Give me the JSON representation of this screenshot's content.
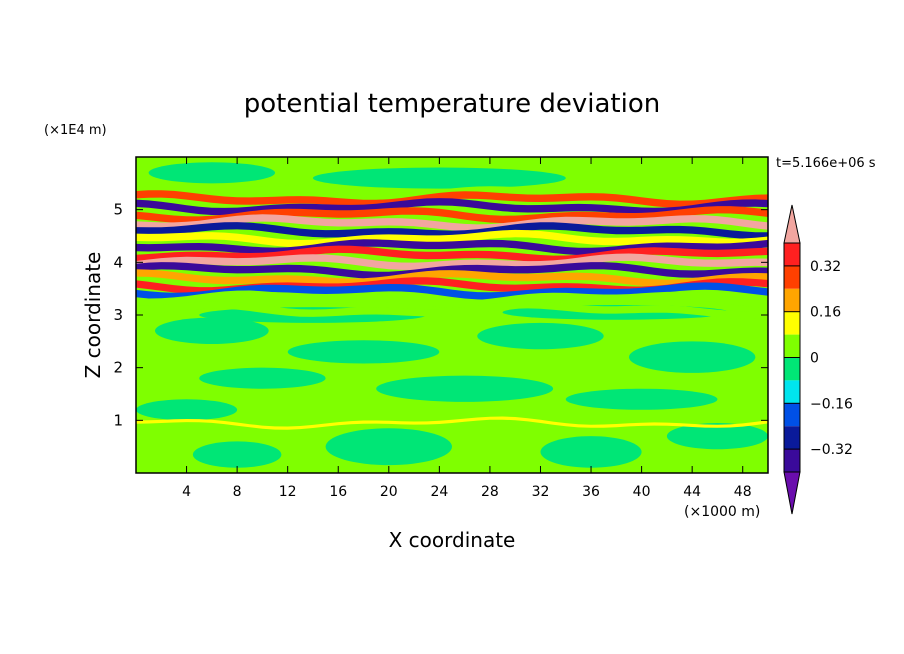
{
  "chart_data": {
    "type": "heatmap",
    "title": "potential temperature deviation",
    "xlabel": "X coordinate",
    "ylabel": "Z coordinate",
    "x_unit_label": "(×1000 m)",
    "y_unit_label": "(×1E4 m)",
    "time_label": "t=5.166e+06 s",
    "xlim": [
      0,
      50
    ],
    "ylim": [
      0,
      6
    ],
    "x_ticks": [
      4,
      8,
      12,
      16,
      20,
      24,
      28,
      32,
      36,
      40,
      44,
      48
    ],
    "y_ticks": [
      1,
      2,
      3,
      4,
      5
    ],
    "colorbar": {
      "levels": [
        -0.4,
        -0.32,
        -0.24,
        -0.16,
        -0.08,
        0,
        0.08,
        0.16,
        0.24,
        0.32,
        0.4
      ],
      "tick_labels": [
        "0.32",
        "0.16",
        "0",
        "−0.16",
        "−0.32"
      ],
      "tick_values": [
        0.32,
        0.16,
        0,
        -0.16,
        -0.32
      ],
      "colors": [
        "#6a0dad",
        "#3a0a9a",
        "#0a1a9a",
        "#0050e6",
        "#00e5ee",
        "#00e676",
        "#7fff00",
        "#ffff00",
        "#ffa500",
        "#ff4000",
        "#ff2020",
        "#f2a6a0"
      ],
      "extend": "both"
    },
    "bands": [
      {
        "z": 5.35,
        "value": 0.05
      },
      {
        "z": 5.2,
        "value": 0.25
      },
      {
        "z": 5.05,
        "value": -0.35
      },
      {
        "z": 4.9,
        "value": 0.3
      },
      {
        "z": 4.75,
        "value": 0.42
      },
      {
        "z": 4.6,
        "value": -0.3
      },
      {
        "z": 4.45,
        "value": 0.1
      },
      {
        "z": 4.3,
        "value": -0.38
      },
      {
        "z": 4.15,
        "value": 0.35
      },
      {
        "z": 4.0,
        "value": 0.45
      },
      {
        "z": 3.85,
        "value": -0.4
      },
      {
        "z": 3.7,
        "value": 0.2
      },
      {
        "z": 3.55,
        "value": 0.35
      },
      {
        "z": 3.45,
        "value": -0.2
      },
      {
        "z": 3.3,
        "value": 0.05
      },
      {
        "z": 3.1,
        "value": 0.0
      },
      {
        "z": 0.95,
        "value": 0.1
      }
    ]
  }
}
